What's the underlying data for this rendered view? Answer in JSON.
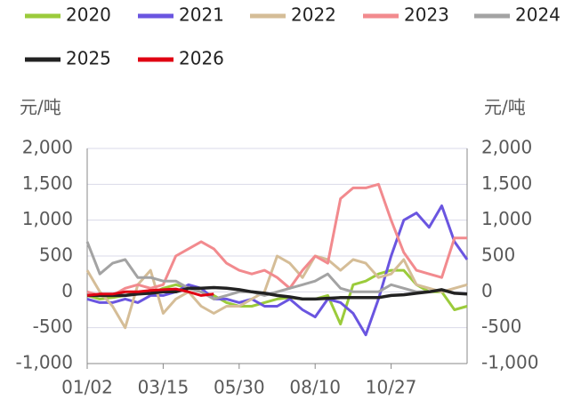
{
  "chart_data": {
    "type": "line",
    "y_label": "元/吨",
    "y2_label": "元/吨",
    "categories": [
      "01/02",
      null,
      null,
      null,
      null,
      null,
      "03/15",
      null,
      null,
      null,
      null,
      null,
      "05/30",
      null,
      null,
      null,
      null,
      null,
      "08/10",
      null,
      null,
      null,
      null,
      null,
      "10/27",
      null,
      null,
      null,
      null,
      null,
      null
    ],
    "ylim": [
      -1000,
      2000
    ],
    "yticks": [
      {
        "value": -1000,
        "label": "-1,000"
      },
      -500,
      0,
      500,
      {
        "value": 1000,
        "label": "1,000"
      },
      {
        "value": 1500,
        "label": "1,500"
      },
      {
        "value": 2000,
        "label": "2,000"
      }
    ],
    "y2lim": [
      -1000,
      2000
    ],
    "y2ticks": [
      {
        "value": -1000,
        "label": "-1,000"
      },
      -500,
      0,
      500,
      {
        "value": 1000,
        "label": "1,000"
      },
      {
        "value": 1500,
        "label": "1,500"
      },
      {
        "value": 2000,
        "label": "2,000"
      }
    ],
    "grid": true,
    "legend": "top",
    "series": [
      {
        "name": "2020",
        "color": "#9bcb3b",
        "values": [
          -50,
          -100,
          -80,
          -50,
          0,
          -30,
          50,
          100,
          50,
          0,
          -50,
          -150,
          -200,
          -200,
          -150,
          -100,
          -80,
          -100,
          -100,
          -50,
          -450,
          100,
          150,
          250,
          300,
          300,
          100,
          0,
          0,
          -250,
          -200
        ]
      },
      {
        "name": "2021",
        "color": "#6a55e0",
        "values": [
          -100,
          -150,
          -150,
          -100,
          -150,
          -50,
          -50,
          0,
          100,
          50,
          -100,
          -100,
          -150,
          -100,
          -200,
          -200,
          -100,
          -250,
          -350,
          -100,
          -150,
          -300,
          -600,
          -100,
          500,
          1000,
          1100,
          900,
          1200,
          700,
          450
        ]
      },
      {
        "name": "2022",
        "color": "#d5bd97",
        "values": [
          300,
          0,
          -200,
          -500,
          100,
          300,
          -300,
          -100,
          0,
          -200,
          -300,
          -200,
          -200,
          -100,
          0,
          500,
          400,
          200,
          500,
          450,
          300,
          450,
          400,
          200,
          250,
          450,
          100,
          50,
          0,
          50,
          100
        ]
      },
      {
        "name": "2023",
        "color": "#f28a8e",
        "values": [
          0,
          -50,
          -50,
          50,
          100,
          50,
          100,
          500,
          600,
          700,
          600,
          400,
          300,
          250,
          300,
          200,
          50,
          300,
          500,
          400,
          1300,
          1450,
          1450,
          1500,
          1000,
          550,
          300,
          250,
          200,
          750,
          750
        ]
      },
      {
        "name": "2024",
        "color": "#a3a3a3",
        "values": [
          700,
          250,
          400,
          450,
          200,
          200,
          150,
          150,
          50,
          0,
          -100,
          -50,
          0,
          0,
          -50,
          0,
          50,
          100,
          150,
          250,
          50,
          0,
          0,
          0,
          100,
          50,
          0,
          0,
          null,
          null,
          null
        ]
      },
      {
        "name": "2025",
        "color": "#222222",
        "values": [
          -50,
          -50,
          -50,
          -50,
          -30,
          -20,
          0,
          0,
          50,
          50,
          60,
          50,
          30,
          0,
          -20,
          -50,
          -70,
          -100,
          -100,
          -90,
          -80,
          -80,
          -80,
          -80,
          -50,
          -40,
          -20,
          0,
          30,
          -20,
          -30
        ]
      },
      {
        "name": "2026",
        "color": "#e00012",
        "values": [
          -50,
          -30,
          -30,
          0,
          0,
          20,
          30,
          40,
          0,
          -50,
          -30,
          null,
          null,
          null,
          null,
          null,
          null,
          null,
          null,
          null,
          null,
          null,
          null,
          null,
          null,
          null,
          null,
          null,
          null,
          null,
          null
        ]
      }
    ]
  }
}
